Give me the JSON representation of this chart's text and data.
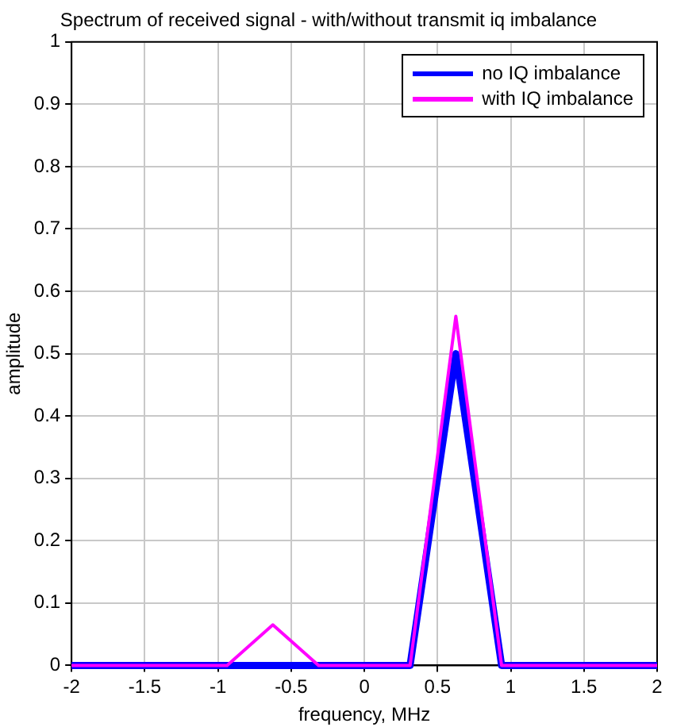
{
  "chart_data": {
    "type": "line",
    "title": "Spectrum of received signal - with/without transmit iq imbalance",
    "xlabel": "frequency, MHz",
    "ylabel": "amplitude",
    "x": [
      -2,
      -1.6875,
      -1.375,
      -1.0625,
      -0.9375,
      -0.625,
      -0.3125,
      0,
      0.3125,
      0.625,
      0.9375,
      1.25,
      1.5625,
      1.875,
      2
    ],
    "series": [
      {
        "name": "no IQ imbalance",
        "color": "#0000ff",
        "values": [
          0,
          0,
          0,
          0,
          0,
          0,
          0,
          0,
          0,
          0.5,
          0,
          0,
          0,
          0,
          0
        ]
      },
      {
        "name": "with IQ imbalance",
        "color": "#ff00ff",
        "values": [
          0,
          0,
          0,
          0,
          0,
          0.065,
          0,
          0,
          0,
          0.56,
          0,
          0,
          0,
          0,
          0
        ]
      }
    ],
    "xlim": [
      -2,
      2
    ],
    "xticks": [
      -2,
      -1.5,
      -1,
      -0.5,
      0,
      0.5,
      1,
      1.5,
      2
    ],
    "ylim": [
      0,
      1
    ],
    "yticks": [
      0,
      0.1,
      0.2,
      0.3,
      0.4,
      0.5,
      0.6,
      0.7,
      0.8,
      0.9,
      1
    ],
    "grid": true,
    "legend": "top right",
    "marker": "none",
    "line_style": "solid"
  }
}
